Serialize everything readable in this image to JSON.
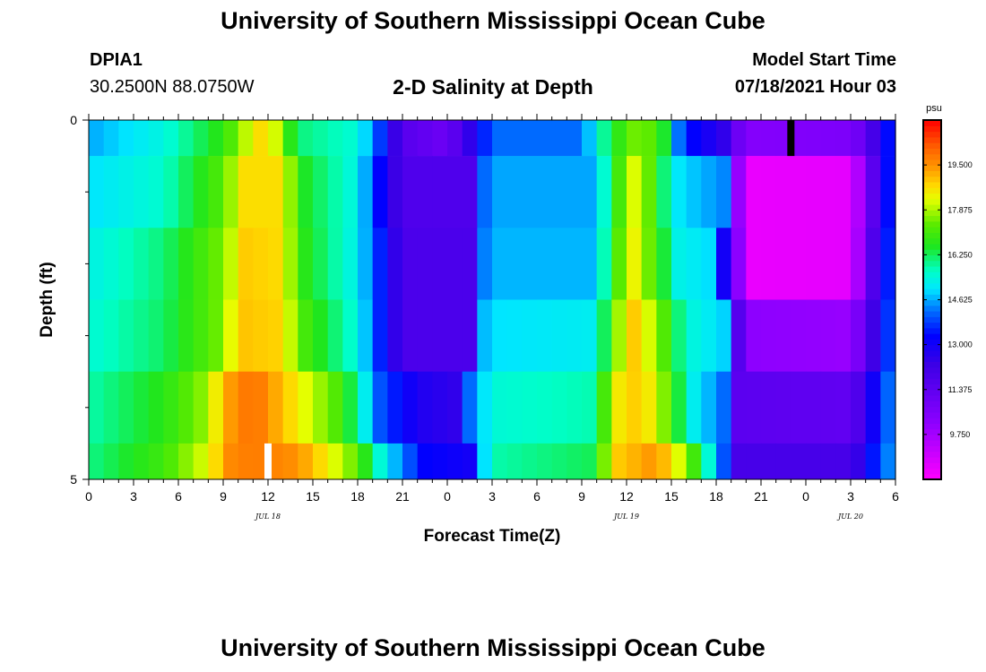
{
  "page": {
    "title_top": "University of Southern Mississippi Ocean Cube",
    "title_bottom": "University of Southern Mississippi Ocean Cube",
    "station_id": "DPIA1",
    "station_coords": "30.2500N  88.0750W",
    "plot_title": "2-D Salinity at Depth",
    "model_start_label": "Model Start Time",
    "model_start_value": "07/18/2021 Hour 03"
  },
  "chart_data": {
    "type": "heatmap",
    "title": "2-D Salinity at Depth",
    "xlabel": "Forecast Time(Z)",
    "ylabel": "Depth (ft)",
    "colorbar_unit": "psu",
    "x_start_hour": 0,
    "x_end_hour": 54,
    "x_ticks": [
      "0",
      "3",
      "6",
      "9",
      "12",
      "15",
      "18",
      "21",
      "0",
      "3",
      "6",
      "9",
      "12",
      "15",
      "18",
      "21",
      "0",
      "3",
      "6"
    ],
    "date_labels": [
      {
        "label": "JUL 18",
        "hour": 12
      },
      {
        "label": "JUL 19",
        "hour": 36
      },
      {
        "label": "JUL 20",
        "hour": 51
      }
    ],
    "y_ticks": [
      "0",
      "5"
    ],
    "ylim": [
      0,
      5
    ],
    "depth_bins": [
      [
        0,
        0.5
      ],
      [
        0.5,
        1.5
      ],
      [
        1.5,
        2.5
      ],
      [
        2.5,
        3.5
      ],
      [
        3.5,
        4.5
      ],
      [
        4.5,
        5.0
      ]
    ],
    "colorbar": {
      "min": 8.125,
      "max": 21.125,
      "tick_values": [
        9.75,
        11.375,
        13.0,
        14.625,
        16.25,
        17.875,
        19.5
      ],
      "tick_labels": [
        "9.750",
        "11.375",
        "13.000",
        "14.625",
        "16.250",
        "17.875",
        "19.500"
      ]
    },
    "markers": [
      {
        "hour": 12,
        "depth_from": 4.5,
        "depth_to": 5.0,
        "color": "#ffffff"
      },
      {
        "hour": 47,
        "depth_from": 0.0,
        "depth_to": 0.5,
        "color": "#000000"
      }
    ],
    "salinity_profiles": [
      {
        "depth_bin": "0-0.5 ft",
        "keys": [
          [
            0,
            14.6
          ],
          [
            5,
            15.4
          ],
          [
            9,
            16.8
          ],
          [
            11,
            18.4
          ],
          [
            12,
            19.0
          ],
          [
            13,
            17.3
          ],
          [
            14,
            16.1
          ],
          [
            18,
            15.5
          ],
          [
            19.5,
            13.8
          ],
          [
            21,
            11.6
          ],
          [
            24,
            11.0
          ],
          [
            25.5,
            12.5
          ],
          [
            27,
            14.2
          ],
          [
            33,
            14.2
          ],
          [
            35,
            16.5
          ],
          [
            37,
            17.8
          ],
          [
            38.5,
            16.5
          ],
          [
            39,
            15.0
          ],
          [
            40,
            13.5
          ],
          [
            42.5,
            12.5
          ],
          [
            43,
            11.6
          ],
          [
            44,
            10.4
          ],
          [
            51,
            10.6
          ],
          [
            52,
            11.3
          ],
          [
            53,
            12.8
          ],
          [
            54,
            14.0
          ]
        ]
      },
      {
        "depth_bin": "0.5-1.5 ft",
        "keys": [
          [
            0,
            15.0
          ],
          [
            5,
            15.6
          ],
          [
            9,
            17.3
          ],
          [
            10.5,
            18.7
          ],
          [
            13,
            18.7
          ],
          [
            14,
            16.7
          ],
          [
            18,
            15.3
          ],
          [
            19.5,
            13.3
          ],
          [
            21,
            11.8
          ],
          [
            25.5,
            11.8
          ],
          [
            26,
            13.8
          ],
          [
            27,
            14.6
          ],
          [
            34,
            14.6
          ],
          [
            35,
            16.5
          ],
          [
            36.5,
            18.2
          ],
          [
            38,
            17.0
          ],
          [
            39,
            15.2
          ],
          [
            40.5,
            14.8
          ],
          [
            42.5,
            14.4
          ],
          [
            43,
            11.5
          ],
          [
            44,
            8.5
          ],
          [
            51,
            8.6
          ],
          [
            52,
            10.5
          ],
          [
            53,
            12.5
          ],
          [
            54,
            14.3
          ]
        ]
      },
      {
        "depth_bin": "1.5-2.5 ft",
        "keys": [
          [
            0,
            15.3
          ],
          [
            5,
            16.1
          ],
          [
            9,
            17.6
          ],
          [
            10.5,
            18.9
          ],
          [
            13,
            18.7
          ],
          [
            14,
            16.9
          ],
          [
            18,
            15.2
          ],
          [
            19.5,
            13.6
          ],
          [
            21,
            11.9
          ],
          [
            25.5,
            11.9
          ],
          [
            26,
            14.0
          ],
          [
            27,
            14.7
          ],
          [
            34,
            14.7
          ],
          [
            35,
            16.8
          ],
          [
            36.5,
            18.4
          ],
          [
            38,
            17.0
          ],
          [
            39.5,
            15.3
          ],
          [
            42,
            14.9
          ],
          [
            42.5,
            13.0
          ],
          [
            43.5,
            10.2
          ],
          [
            44,
            8.5
          ],
          [
            51,
            8.6
          ],
          [
            52,
            10.8
          ],
          [
            53,
            12.8
          ],
          [
            54,
            14.3
          ]
        ]
      },
      {
        "depth_bin": "2.5-3.5 ft",
        "keys": [
          [
            0,
            15.5
          ],
          [
            5,
            16.2
          ],
          [
            9,
            17.6
          ],
          [
            10,
            19.0
          ],
          [
            13,
            18.8
          ],
          [
            14,
            17.3
          ],
          [
            18,
            15.4
          ],
          [
            19.5,
            13.6
          ],
          [
            21,
            11.9
          ],
          [
            25.5,
            11.9
          ],
          [
            26,
            14.5
          ],
          [
            27,
            15.0
          ],
          [
            34,
            15.2
          ],
          [
            35,
            17.3
          ],
          [
            36.5,
            18.9
          ],
          [
            38,
            17.8
          ],
          [
            40,
            15.5
          ],
          [
            42.5,
            14.9
          ],
          [
            43,
            13.0
          ],
          [
            44,
            10.2
          ],
          [
            51,
            10.0
          ],
          [
            52,
            11.4
          ],
          [
            53,
            13.0
          ],
          [
            54,
            14.5
          ]
        ]
      },
      {
        "depth_bin": "3.5-4.5 ft",
        "keys": [
          [
            0,
            15.8
          ],
          [
            5,
            16.7
          ],
          [
            8,
            17.8
          ],
          [
            9,
            19.2
          ],
          [
            11,
            20.0
          ],
          [
            14,
            18.5
          ],
          [
            17,
            17.0
          ],
          [
            18,
            15.8
          ],
          [
            19.5,
            14.0
          ],
          [
            22,
            12.8
          ],
          [
            24.5,
            12.5
          ],
          [
            25.5,
            14.2
          ],
          [
            27,
            15.5
          ],
          [
            34,
            15.8
          ],
          [
            35,
            18.4
          ],
          [
            37,
            19.0
          ],
          [
            38.5,
            17.6
          ],
          [
            40.5,
            15.2
          ],
          [
            42.5,
            14.2
          ],
          [
            43,
            11.5
          ],
          [
            51,
            11.3
          ],
          [
            52,
            12.3
          ],
          [
            53,
            13.8
          ],
          [
            54,
            14.5
          ]
        ]
      },
      {
        "depth_bin": "4.5-5.0 ft",
        "keys": [
          [
            0,
            16.0
          ],
          [
            5,
            17.0
          ],
          [
            8,
            18.3
          ],
          [
            9.5,
            19.6
          ],
          [
            11,
            19.8
          ],
          [
            14,
            19.5
          ],
          [
            16,
            18.5
          ],
          [
            18,
            17.3
          ],
          [
            19.5,
            15.5
          ],
          [
            21,
            14.3
          ],
          [
            22.5,
            13.3
          ],
          [
            25.5,
            13.0
          ],
          [
            26,
            14.2
          ],
          [
            27,
            15.8
          ],
          [
            34,
            16.3
          ],
          [
            35,
            18.8
          ],
          [
            38,
            19.5
          ],
          [
            40,
            17.8
          ],
          [
            41.5,
            15.5
          ],
          [
            42.5,
            14.0
          ],
          [
            43.5,
            12.0
          ],
          [
            51,
            12.0
          ],
          [
            52,
            12.8
          ],
          [
            53,
            14.2
          ],
          [
            54,
            14.5
          ]
        ]
      }
    ]
  }
}
